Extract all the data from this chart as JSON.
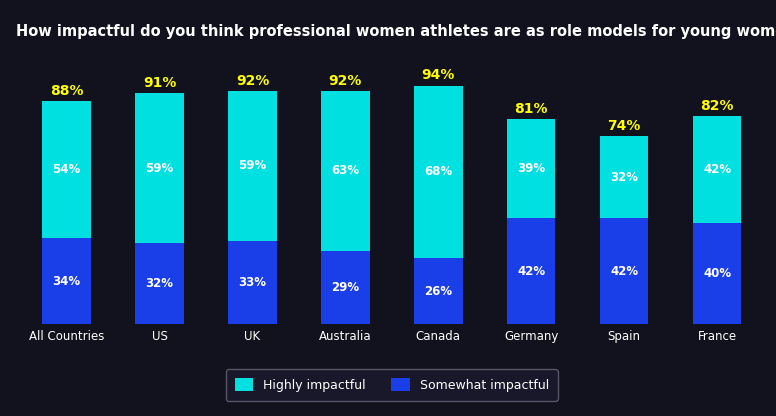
{
  "categories": [
    "All Countries",
    "US",
    "UK",
    "Australia",
    "Canada",
    "Germany",
    "Spain",
    "France"
  ],
  "highly_impactful": [
    54,
    59,
    59,
    63,
    68,
    39,
    32,
    42
  ],
  "somewhat_impactful": [
    34,
    32,
    33,
    29,
    26,
    42,
    42,
    40
  ],
  "totals": [
    88,
    91,
    92,
    92,
    94,
    81,
    74,
    82
  ],
  "color_highly": "#00E0E0",
  "color_somewhat": "#1A3EE8",
  "color_total": "#FFFF00",
  "color_bar_label": "#FFFFFF",
  "title": "How impactful do you think professional women athletes are as role models for young women?",
  "title_color": "#FFFFFF",
  "title_fontsize": 10.5,
  "bar_width": 0.52,
  "legend_highly": "Highly impactful",
  "legend_somewhat": "Somewhat impactful",
  "bg_dark": "#12121E",
  "legend_bg": "#1a1a2e",
  "legend_edge": "#666677"
}
